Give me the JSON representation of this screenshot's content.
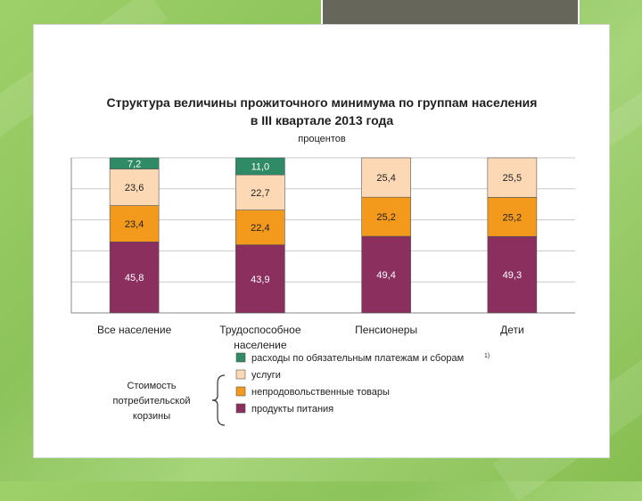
{
  "chart_data": {
    "type": "bar",
    "stacked": true,
    "title": "Структура величины прожиточного минимума по группам населения",
    "subtitle": "в III квартале 2013 года",
    "unit": "процентов",
    "categories": [
      "Все население",
      "Трудоспособное население",
      "Пенсионеры",
      "Дети"
    ],
    "series": [
      {
        "name": "продукты питания",
        "color": "#8b2f5f",
        "values": [
          45.8,
          43.9,
          49.4,
          49.3
        ],
        "labels": [
          "45,8",
          "43,9",
          "49,4",
          "49,3"
        ]
      },
      {
        "name": "непродовольственные товары",
        "color": "#f39a1c",
        "values": [
          23.4,
          22.4,
          25.2,
          25.2
        ],
        "labels": [
          "23,4",
          "22,4",
          "25,2",
          "25,2"
        ]
      },
      {
        "name": "услуги",
        "color": "#fcd9b4",
        "values": [
          23.6,
          22.7,
          25.4,
          25.5
        ],
        "labels": [
          "23,6",
          "22,7",
          "25,4",
          "25,5"
        ]
      },
      {
        "name": "расходы по обязательным платежам и сборам",
        "color": "#2e8b66",
        "values": [
          7.2,
          11.0,
          0,
          0
        ],
        "labels": [
          "7,2",
          "11,0",
          "",
          ""
        ]
      }
    ],
    "legend_footnote": "1)",
    "legend_group_label": "Стоимость потребительской корзины",
    "ylim": [
      0,
      100
    ],
    "grid": true
  }
}
